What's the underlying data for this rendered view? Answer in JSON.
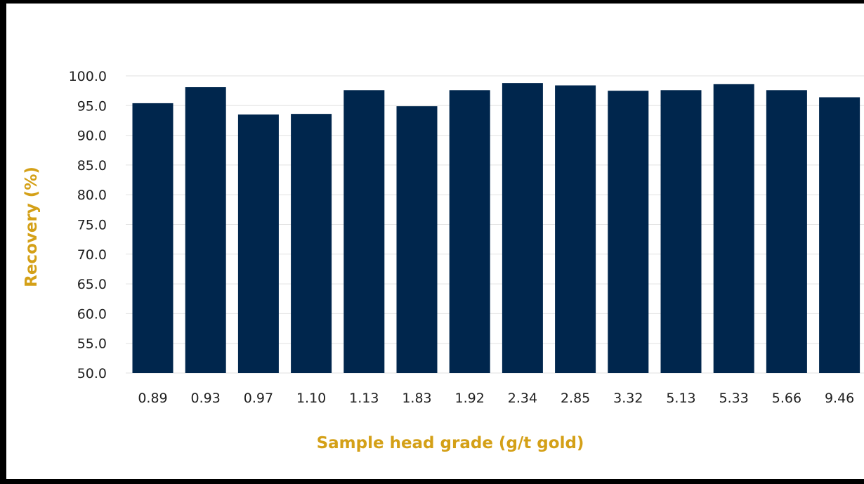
{
  "chart_data": {
    "type": "bar",
    "title": "",
    "xlabel": "Sample head grade (g/t gold)",
    "ylabel": "Recovery (%)",
    "categories": [
      "0.89",
      "0.93",
      "0.97",
      "1.10",
      "1.13",
      "1.83",
      "1.92",
      "2.34",
      "2.85",
      "3.32",
      "5.13",
      "5.33",
      "5.66",
      "9.46"
    ],
    "values": [
      95.4,
      98.1,
      93.5,
      93.6,
      97.6,
      94.9,
      97.6,
      98.8,
      98.4,
      97.5,
      97.6,
      98.6,
      97.6,
      96.4
    ],
    "ylim": [
      50,
      100
    ],
    "yticks": [
      "50.0",
      "55.0",
      "60.0",
      "65.0",
      "70.0",
      "75.0",
      "80.0",
      "85.0",
      "90.0",
      "95.0",
      "100.0"
    ],
    "grid": true,
    "legend": "none",
    "colors": {
      "bar": "#00264d",
      "axis_title": "#d4a017",
      "grid": "#e2e2e2"
    }
  }
}
